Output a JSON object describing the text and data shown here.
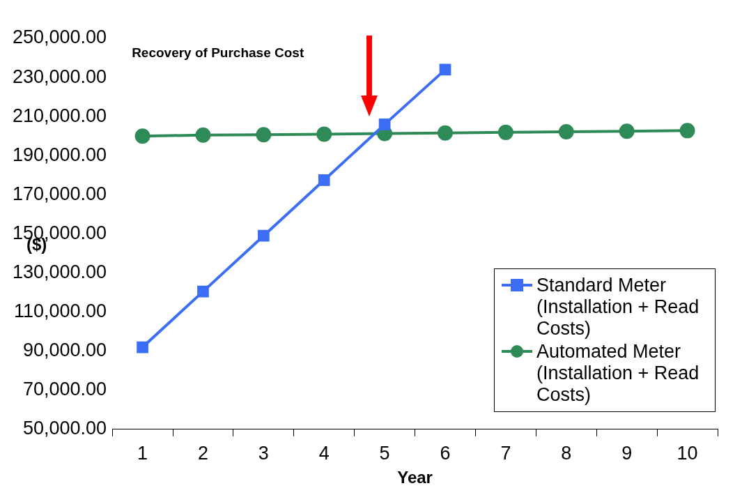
{
  "chart_data": {
    "type": "line",
    "xlabel": "Year",
    "ylabel": "($)",
    "categories": [
      "1",
      "2",
      "3",
      "4",
      "5",
      "6",
      "7",
      "8",
      "9",
      "10"
    ],
    "series": [
      {
        "name": "Standard Meter (Installation + Read Costs)",
        "color": "#3b6ef5",
        "marker": "square",
        "values": [
          92000,
          120500,
          149000,
          177500,
          206000,
          234000,
          null,
          null,
          null,
          null
        ]
      },
      {
        "name": "Automated Meter (Installation + Read Costs)",
        "color": "#2e8b57",
        "marker": "circle",
        "values": [
          200000,
          200500,
          200700,
          201000,
          201300,
          201600,
          201900,
          202200,
          202500,
          202800
        ]
      }
    ],
    "ylim": [
      50000,
      250000
    ],
    "yticks": [
      {
        "value": 50000,
        "label": "50,000.00"
      },
      {
        "value": 70000,
        "label": "70,000.00"
      },
      {
        "value": 90000,
        "label": "90,000.00"
      },
      {
        "value": 110000,
        "label": "110,000.00"
      },
      {
        "value": 130000,
        "label": "130,000.00"
      },
      {
        "value": 150000,
        "label": "150,000.00"
      },
      {
        "value": 170000,
        "label": "170,000.00"
      },
      {
        "value": 190000,
        "label": "190,000.00"
      },
      {
        "value": 210000,
        "label": "210,000.00"
      },
      {
        "value": 230000,
        "label": "230,000.00"
      },
      {
        "value": 250000,
        "label": "250,000.00"
      }
    ],
    "grid": false,
    "legend": "bottom right",
    "line_style": "solid",
    "annotations": [
      "Recovery of Purchase Cost"
    ]
  }
}
